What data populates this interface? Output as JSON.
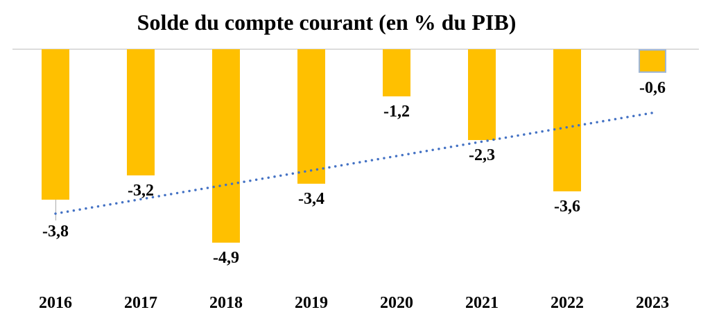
{
  "chart_data": {
    "type": "bar",
    "title": "Solde du compte courant (en % du PIB)",
    "categories": [
      "2016",
      "2017",
      "2018",
      "2019",
      "2020",
      "2021",
      "2022",
      "2023"
    ],
    "values": [
      -3.8,
      -3.2,
      -4.9,
      -3.4,
      -1.2,
      -2.3,
      -3.6,
      -0.6
    ],
    "value_labels": [
      "-3,8",
      "-3,2",
      "-4,9",
      "-3,4",
      "-1,2",
      "-2,3",
      "-3,6",
      "-0,6"
    ],
    "xlabel": "",
    "ylabel": "",
    "ylim": [
      -6,
      0
    ],
    "grid": false,
    "legend": "none",
    "bar_color": "#FFC000",
    "zero_line_color": "#dcdcdc",
    "selected_category": "2023",
    "selected_border_color": "#9fb6d5",
    "leader_line_category": "2016",
    "trendline": {
      "type": "linear",
      "style": "dotted",
      "color": "#4472C4",
      "start": {
        "category": "2016",
        "value": -4.16
      },
      "end": {
        "category": "2023",
        "value": -1.61
      }
    }
  }
}
